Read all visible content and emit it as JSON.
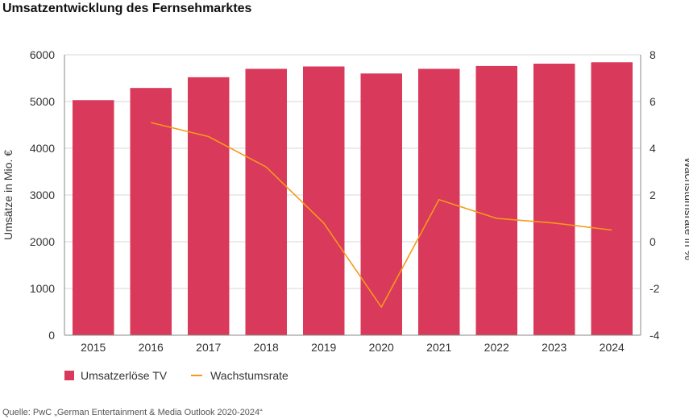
{
  "colors": {
    "bar": "#d9395a",
    "line": "#f59a1b",
    "axis": "#888888",
    "grid": "#d7d7d7"
  },
  "chart_data": {
    "type": "bar",
    "title": "Umsatzentwicklung des Fernsehmarktes",
    "categories": [
      "2015",
      "2016",
      "2017",
      "2018",
      "2019",
      "2020",
      "2021",
      "2022",
      "2023",
      "2024"
    ],
    "ylabel": "Umsätze in Mio. €",
    "y2label": "Wachstumsrate in %",
    "ylim": [
      0,
      6000
    ],
    "yticks": [
      0,
      1000,
      2000,
      3000,
      4000,
      5000,
      6000
    ],
    "y2lim": [
      -4,
      8
    ],
    "y2ticks": [
      -4,
      -2,
      0,
      2,
      4,
      6,
      8
    ],
    "grid": true,
    "legend_position": "bottom-left",
    "series": [
      {
        "name": "Umsatzerlöse TV",
        "type": "bar",
        "axis": "left",
        "values": [
          5030,
          5290,
          5520,
          5700,
          5750,
          5600,
          5700,
          5760,
          5810,
          5840
        ]
      },
      {
        "name": "Wachstumsrate",
        "type": "line",
        "axis": "right",
        "values": [
          null,
          5.1,
          4.5,
          3.2,
          0.8,
          -2.8,
          1.8,
          1.0,
          0.8,
          0.5
        ]
      }
    ]
  },
  "source": "Quelle: PwC „German Entertainment & Media Outlook 2020-2024“"
}
